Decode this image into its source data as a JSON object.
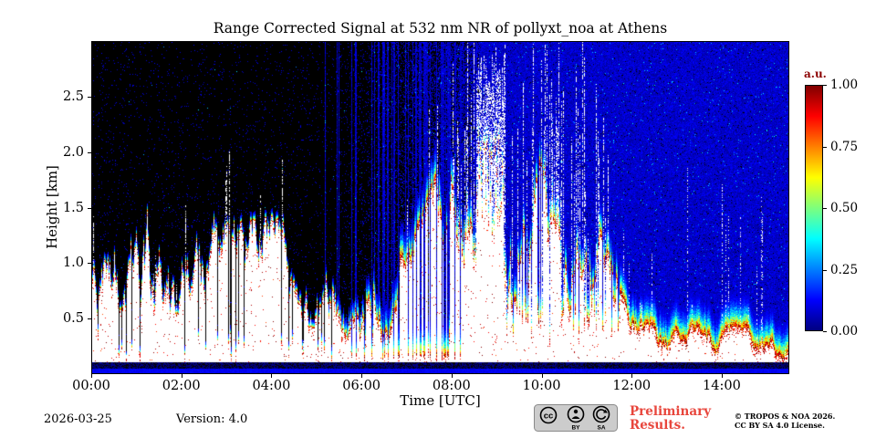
{
  "chart_data": {
    "type": "heatmap",
    "title": "Range Corrected Signal at 532 nm NR of pollyxt_noa at Athens",
    "xlabel": "Time [UTC]",
    "ylabel": "Height [km]",
    "x_ticks": [
      "00:00",
      "02:00",
      "04:00",
      "06:00",
      "08:00",
      "10:00",
      "12:00",
      "14:00"
    ],
    "x_tick_hours": [
      0,
      2,
      4,
      6,
      8,
      10,
      12,
      14
    ],
    "x_range_hours": [
      0,
      15.5
    ],
    "y_ticks": [
      "0.5",
      "1.0",
      "1.5",
      "2.0",
      "2.5"
    ],
    "y_tick_values": [
      0.5,
      1.0,
      1.5,
      2.0,
      2.5
    ],
    "y_range_km": [
      0,
      3.0
    ],
    "grid": false,
    "colorbar": {
      "label": "a.u.",
      "tick_labels": [
        "1.00",
        "0.75",
        "0.50",
        "0.25",
        "0.00"
      ],
      "tick_values": [
        1,
        0.75,
        0.5,
        0.25,
        0
      ],
      "range": [
        0,
        1
      ],
      "colormap": "jet"
    },
    "features": {
      "background_before_sunrise": "black with sparse blue noise pixels",
      "background_after_sunrise": "dense blue speckle noise (daylight background)",
      "noise_transition_hours": [
        5.0,
        8.6
      ],
      "aerosol_top_km_hourly": [
        1.0,
        1.45,
        1.15,
        1.0,
        1.05,
        0.9,
        0.7,
        0.8,
        1.6,
        1.5,
        1.4,
        1.2,
        0.35,
        0.3,
        0.32,
        0.3,
        0.28
      ],
      "deep_plume_hours": [
        8.55,
        9.15
      ],
      "deep_plume_top_km": 2.9,
      "surface_layer": "saturated white aerosol layer with red-orange fringe near 0.3 km and yellow-green-cyan decay above it after 06:00",
      "bottom_bands_km": [
        0.045,
        0.105
      ]
    }
  },
  "footer": {
    "date": "2026-03-25",
    "version": "Version: 4.0",
    "preliminary_line1": "Preliminary",
    "preliminary_line2": "Results.",
    "copyright_line1": "© TROPOS & NOA 2026.",
    "copyright_line2": "CC BY SA 4.0 License.",
    "badge": {
      "cc": "cc",
      "by": "BY",
      "sa": "SA"
    }
  },
  "colors": {
    "preliminary_red": "#e8463c",
    "unit_label_red": "#8b0000",
    "axis_black": "#000000",
    "background_white": "#ffffff",
    "heatmap_background": "#000000"
  }
}
